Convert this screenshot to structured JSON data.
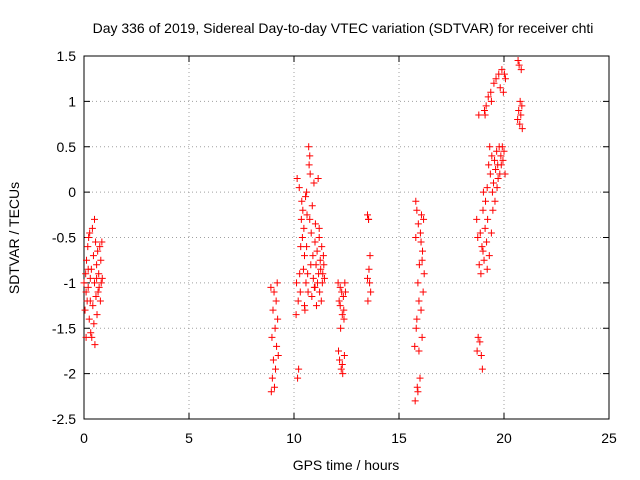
{
  "chart_data": {
    "type": "scatter",
    "title": "Day 336 of 2019, Sidereal Day-to-day VTEC variation (SDTVAR) for receiver chti",
    "xlabel": "GPS time / hours",
    "ylabel": "SDTVAR / TECUs",
    "xlim": [
      0,
      25
    ],
    "ylim": [
      -2.5,
      1.5
    ],
    "xticks": [
      0,
      5,
      10,
      15,
      20,
      25
    ],
    "yticks": [
      -2.5,
      -2,
      -1.5,
      -1,
      -0.5,
      0,
      0.5,
      1,
      1.5
    ],
    "xtick_labels": [
      "0",
      "5",
      "10",
      "15",
      "20",
      "25"
    ],
    "ytick_labels": [
      "-2.5",
      "-2",
      "-1.5",
      "-1",
      "-0.5",
      "0",
      "0.5",
      "1",
      "1.5"
    ],
    "grid": true,
    "marker": "+",
    "color": "#ff0000",
    "series": [
      {
        "name": "SDTVAR",
        "points": [
          [
            0.0,
            -1.0
          ],
          [
            0.05,
            -1.3
          ],
          [
            0.08,
            -0.9
          ],
          [
            0.1,
            -1.1
          ],
          [
            0.12,
            -0.75
          ],
          [
            0.15,
            -1.2
          ],
          [
            0.18,
            -0.6
          ],
          [
            0.2,
            -1.05
          ],
          [
            0.22,
            -0.5
          ],
          [
            0.25,
            -1.4
          ],
          [
            0.27,
            -0.45
          ],
          [
            0.3,
            -0.95
          ],
          [
            0.32,
            -1.55
          ],
          [
            0.35,
            -0.85
          ],
          [
            0.37,
            -1.6
          ],
          [
            0.4,
            -0.4
          ],
          [
            0.42,
            -1.25
          ],
          [
            0.45,
            -0.7
          ],
          [
            0.47,
            -1.45
          ],
          [
            0.5,
            -1.0
          ],
          [
            0.52,
            -1.68
          ],
          [
            0.55,
            -0.55
          ],
          [
            0.57,
            -1.15
          ],
          [
            0.6,
            -0.8
          ],
          [
            0.62,
            -1.35
          ],
          [
            0.65,
            -0.65
          ],
          [
            0.67,
            -1.1
          ],
          [
            0.7,
            -0.9
          ],
          [
            0.72,
            -1.05
          ],
          [
            0.75,
            -0.6
          ],
          [
            0.78,
            -1.2
          ],
          [
            0.8,
            -0.75
          ],
          [
            0.82,
            -1.0
          ],
          [
            0.85,
            -0.55
          ],
          [
            0.87,
            -0.95
          ],
          [
            0.2,
            -0.85
          ],
          [
            0.3,
            -1.2
          ],
          [
            0.5,
            -0.3
          ],
          [
            0.6,
            -0.95
          ],
          [
            0.1,
            -1.6
          ],
          [
            8.9,
            -1.05
          ],
          [
            8.92,
            -2.2
          ],
          [
            8.95,
            -1.6
          ],
          [
            8.97,
            -2.05
          ],
          [
            9.0,
            -1.3
          ],
          [
            9.02,
            -1.85
          ],
          [
            9.05,
            -1.1
          ],
          [
            9.07,
            -2.15
          ],
          [
            9.1,
            -1.5
          ],
          [
            9.12,
            -1.95
          ],
          [
            9.15,
            -1.2
          ],
          [
            9.17,
            -1.7
          ],
          [
            9.2,
            -1.0
          ],
          [
            9.22,
            -1.4
          ],
          [
            9.25,
            -1.8
          ],
          [
            10.1,
            -1.35
          ],
          [
            10.12,
            -1.0
          ],
          [
            10.15,
            0.15
          ],
          [
            10.17,
            -2.05
          ],
          [
            10.2,
            -1.2
          ],
          [
            10.22,
            -1.95
          ],
          [
            10.25,
            0.05
          ],
          [
            10.27,
            -0.9
          ],
          [
            10.3,
            -1.1
          ],
          [
            10.32,
            -0.6
          ],
          [
            10.35,
            -0.3
          ],
          [
            10.37,
            -0.1
          ],
          [
            10.4,
            -0.5
          ],
          [
            10.42,
            -0.2
          ],
          [
            10.45,
            -0.85
          ],
          [
            10.47,
            -0.4
          ],
          [
            10.5,
            -0.7
          ],
          [
            10.52,
            -1.3
          ],
          [
            10.55,
            -0.05
          ],
          [
            10.57,
            -1.0
          ],
          [
            10.6,
            -0.6
          ],
          [
            10.62,
            -0.25
          ],
          [
            10.65,
            -0.9
          ],
          [
            10.67,
            -1.1
          ],
          [
            10.7,
            0.5
          ],
          [
            10.72,
            0.3
          ],
          [
            10.75,
            0.4
          ],
          [
            10.77,
            0.2
          ],
          [
            10.8,
            -0.8
          ],
          [
            10.82,
            -0.45
          ],
          [
            10.85,
            -1.15
          ],
          [
            10.87,
            -0.15
          ],
          [
            10.9,
            -0.7
          ],
          [
            10.92,
            -0.95
          ],
          [
            10.95,
            0.1
          ],
          [
            10.97,
            -1.05
          ],
          [
            11.0,
            -0.55
          ],
          [
            11.02,
            -0.35
          ],
          [
            11.05,
            -0.8
          ],
          [
            11.07,
            -1.25
          ],
          [
            11.1,
            -0.65
          ],
          [
            11.12,
            -1.0
          ],
          [
            11.15,
            0.15
          ],
          [
            11.17,
            -0.9
          ],
          [
            11.2,
            -0.5
          ],
          [
            11.22,
            -1.1
          ],
          [
            11.25,
            -0.75
          ],
          [
            11.27,
            -0.85
          ],
          [
            11.3,
            -1.2
          ],
          [
            11.32,
            -0.6
          ],
          [
            11.35,
            -1.0
          ],
          [
            11.37,
            -0.9
          ],
          [
            11.4,
            -0.7
          ],
          [
            11.42,
            -0.8
          ],
          [
            11.45,
            -0.95
          ],
          [
            10.5,
            -1.25
          ],
          [
            10.6,
            0.0
          ],
          [
            10.75,
            -0.3
          ],
          [
            11.0,
            -1.05
          ],
          [
            11.2,
            -0.4
          ],
          [
            12.1,
            -1.0
          ],
          [
            12.12,
            -1.75
          ],
          [
            12.15,
            -1.2
          ],
          [
            12.17,
            -1.85
          ],
          [
            12.2,
            -1.05
          ],
          [
            12.22,
            -1.5
          ],
          [
            12.25,
            -1.95
          ],
          [
            12.27,
            -1.1
          ],
          [
            12.3,
            -1.35
          ],
          [
            12.32,
            -2.0
          ],
          [
            12.35,
            -1.15
          ],
          [
            12.37,
            -1.3
          ],
          [
            12.4,
            -1.8
          ],
          [
            12.42,
            -1.0
          ],
          [
            12.45,
            -1.1
          ],
          [
            12.2,
            -1.25
          ],
          [
            12.3,
            -1.9
          ],
          [
            12.38,
            -1.4
          ],
          [
            13.5,
            -0.25
          ],
          [
            13.52,
            -1.2
          ],
          [
            13.55,
            -0.3
          ],
          [
            13.57,
            -0.85
          ],
          [
            13.6,
            -1.0
          ],
          [
            13.62,
            -0.7
          ],
          [
            13.65,
            -1.1
          ],
          [
            13.5,
            -0.95
          ],
          [
            13.55,
            -0.3
          ],
          [
            15.75,
            -1.7
          ],
          [
            15.77,
            -2.3
          ],
          [
            15.8,
            -0.5
          ],
          [
            15.82,
            -1.5
          ],
          [
            15.85,
            -0.2
          ],
          [
            15.87,
            -2.15
          ],
          [
            15.9,
            -1.0
          ],
          [
            15.92,
            -0.35
          ],
          [
            15.95,
            -1.75
          ],
          [
            15.97,
            -0.8
          ],
          [
            16.0,
            -2.05
          ],
          [
            16.02,
            -0.45
          ],
          [
            16.05,
            -1.3
          ],
          [
            16.07,
            -0.25
          ],
          [
            16.1,
            -1.6
          ],
          [
            16.12,
            -0.65
          ],
          [
            16.15,
            -1.1
          ],
          [
            16.17,
            -0.3
          ],
          [
            16.2,
            -0.9
          ],
          [
            15.9,
            -2.2
          ],
          [
            15.95,
            -1.2
          ],
          [
            16.05,
            -0.55
          ],
          [
            15.85,
            -1.4
          ],
          [
            16.1,
            -0.75
          ],
          [
            15.8,
            -0.1
          ],
          [
            18.7,
            -0.3
          ],
          [
            18.72,
            -1.75
          ],
          [
            18.75,
            -0.5
          ],
          [
            18.77,
            -1.6
          ],
          [
            18.8,
            0.85
          ],
          [
            18.82,
            -0.8
          ],
          [
            18.85,
            -1.65
          ],
          [
            18.87,
            -0.45
          ],
          [
            18.9,
            -0.9
          ],
          [
            18.92,
            -1.8
          ],
          [
            18.95,
            -0.6
          ],
          [
            18.97,
            -1.95
          ],
          [
            19.0,
            -0.2
          ],
          [
            19.02,
            0.0
          ],
          [
            19.05,
            -0.75
          ],
          [
            19.07,
            0.9
          ],
          [
            19.1,
            -0.4
          ],
          [
            19.12,
            -0.1
          ],
          [
            19.15,
            0.95
          ],
          [
            19.17,
            -0.55
          ],
          [
            19.2,
            0.05
          ],
          [
            19.22,
            -0.3
          ],
          [
            19.25,
            1.05
          ],
          [
            19.27,
            0.3
          ],
          [
            19.3,
            -0.7
          ],
          [
            19.32,
            0.5
          ],
          [
            19.35,
            0.2
          ],
          [
            19.37,
            1.1
          ],
          [
            19.4,
            -0.45
          ],
          [
            19.42,
            0.4
          ],
          [
            19.45,
            0.0
          ],
          [
            19.47,
            -0.2
          ],
          [
            19.5,
            0.1
          ],
          [
            19.52,
            1.2
          ],
          [
            19.55,
            0.35
          ],
          [
            19.57,
            -0.1
          ],
          [
            19.6,
            0.25
          ],
          [
            19.62,
            1.25
          ],
          [
            19.65,
            0.45
          ],
          [
            19.67,
            0.05
          ],
          [
            19.7,
            0.3
          ],
          [
            19.72,
            0.15
          ],
          [
            19.75,
            1.3
          ],
          [
            19.77,
            0.5
          ],
          [
            19.8,
            0.2
          ],
          [
            19.82,
            1.15
          ],
          [
            19.85,
            0.4
          ],
          [
            19.87,
            0.3
          ],
          [
            19.9,
            1.35
          ],
          [
            19.92,
            0.5
          ],
          [
            19.95,
            0.35
          ],
          [
            19.97,
            1.1
          ],
          [
            20.0,
            0.45
          ],
          [
            20.02,
            1.3
          ],
          [
            20.05,
            0.2
          ],
          [
            20.07,
            1.25
          ],
          [
            19.0,
            -0.65
          ],
          [
            19.2,
            -0.85
          ],
          [
            19.1,
            0.85
          ],
          [
            19.4,
            1.0
          ],
          [
            20.65,
            0.8
          ],
          [
            20.67,
            1.45
          ],
          [
            20.7,
            0.9
          ],
          [
            20.72,
            1.4
          ],
          [
            20.75,
            0.75
          ],
          [
            20.77,
            1.0
          ],
          [
            20.8,
            0.85
          ],
          [
            20.82,
            1.35
          ],
          [
            20.85,
            0.95
          ],
          [
            20.87,
            0.7
          ]
        ]
      }
    ]
  }
}
